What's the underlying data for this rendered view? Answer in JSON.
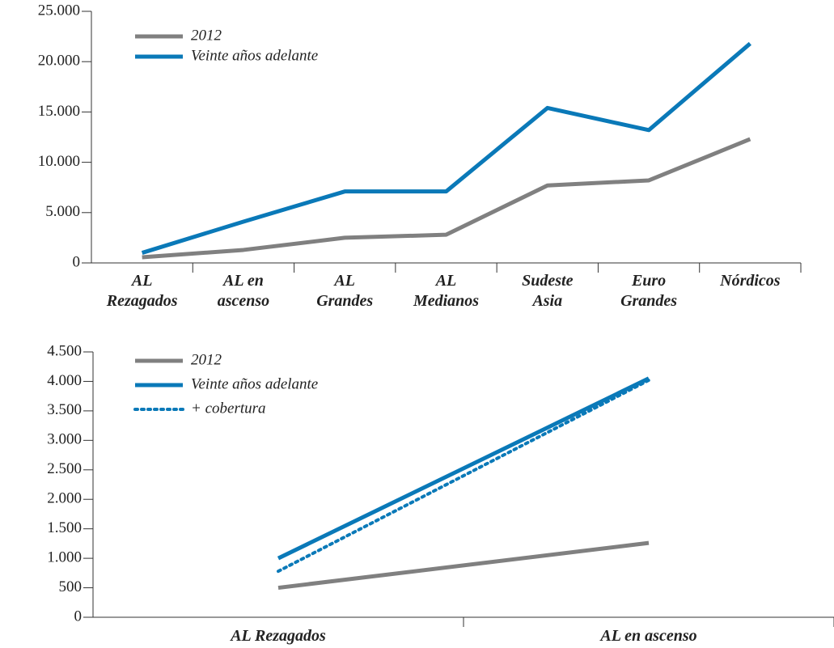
{
  "chart_data": [
    {
      "type": "line",
      "categories": [
        "AL\nRezagados",
        "AL en\nascenso",
        "AL\nGrandes",
        "AL\nMedianos",
        "Sudeste\nAsia",
        "Euro\nGrandes",
        "Nórdicos"
      ],
      "series": [
        {
          "name": "2012",
          "color": "#808080",
          "values": [
            560,
            1290,
            2500,
            2800,
            7700,
            8200,
            12300
          ]
        },
        {
          "name": "Veinte años adelante",
          "color": "#0a79b8",
          "values": [
            1000,
            4100,
            7100,
            7100,
            15400,
            13200,
            21800
          ]
        }
      ],
      "ylim": [
        0,
        25000
      ],
      "yticks": [
        0,
        {
          "value": 5000,
          "label": "5.000"
        },
        {
          "value": 10000,
          "label": "10.000"
        },
        {
          "value": 15000,
          "label": "15.000"
        },
        {
          "value": 20000,
          "label": "20.000"
        },
        {
          "value": 25000,
          "label": "25.000"
        }
      ],
      "legend": "upper left"
    },
    {
      "type": "line",
      "categories": [
        "AL Rezagados",
        "AL en ascenso"
      ],
      "series": [
        {
          "name": "2012",
          "color": "#808080",
          "values": [
            500,
            1260
          ]
        },
        {
          "name": "Veinte años adelante",
          "color": "#0a79b8",
          "values": [
            1000,
            4050
          ]
        },
        {
          "name": "+ cobertura",
          "color": "#0a79b8",
          "style": "dotted",
          "values": [
            780,
            4020
          ]
        }
      ],
      "ylim": [
        0,
        4500
      ],
      "yticks": [
        0,
        500,
        {
          "value": 1000,
          "label": "1.000"
        },
        {
          "value": 1500,
          "label": "1.500"
        },
        {
          "value": 2000,
          "label": "2.000"
        },
        {
          "value": 2500,
          "label": "2.500"
        },
        {
          "value": 3000,
          "label": "3.000"
        },
        {
          "value": 3500,
          "label": "3.500"
        },
        {
          "value": 4000,
          "label": "4.000"
        },
        {
          "value": 4500,
          "label": "4.500"
        }
      ],
      "legend": "upper left"
    }
  ]
}
